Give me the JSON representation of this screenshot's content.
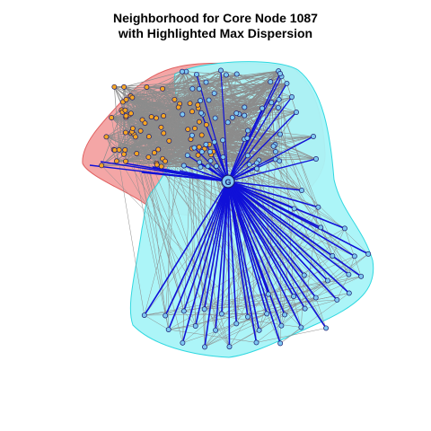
{
  "title": {
    "line1": "Neighborhood for Core Node 1087",
    "line2": "with Highlighted Max Dispersion"
  },
  "graph": {
    "core_node": "1087",
    "core_label": "G",
    "groups": [
      {
        "name": "orange-cluster",
        "node_color": "#f5a623",
        "hull_color": "#f4a6a6",
        "hull_stroke": "#e06060"
      },
      {
        "name": "blue-cluster",
        "node_color": "#7ec8f2",
        "hull_color": "#a8f4f8",
        "hull_stroke": "#30d8e0"
      }
    ],
    "colors": {
      "edge": "#8c8c8c",
      "highlight_edge": "#1010d8",
      "node_stroke": "#1a1a6e",
      "overlap": "#b0b8b8"
    }
  }
}
